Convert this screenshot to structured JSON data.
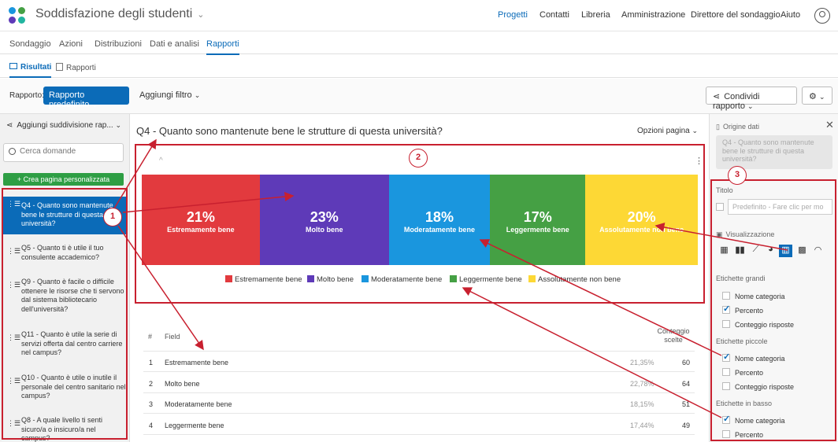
{
  "app": {
    "title": "Soddisfazione degli studenti"
  },
  "topnav": [
    "Progetti",
    "Contatti",
    "Libreria",
    "Amministrazione",
    "Direttore del sondaggio",
    "Aiuto"
  ],
  "tabs": [
    "Sondaggio",
    "Azioni",
    "Distribuzioni",
    "Dati e analisi",
    "Rapporti"
  ],
  "subtabs": [
    "Risultati",
    "Rapporti"
  ],
  "toolbar": {
    "report_label": "Rapporto:",
    "report_value": "Rapporto predefinito",
    "filter": "Aggiungi filtro",
    "share": "Condividi rapporto"
  },
  "sidebar": {
    "breakout": "Aggiungi suddivisione rap...",
    "search_placeholder": "Cerca domande",
    "create_page": "Crea pagina personalizzata",
    "questions": [
      "Q4 - Quanto sono mantenute bene le strutture di questa università?",
      "Q5 - Quanto ti è utile il tuo consulente accademico?",
      "Q9 - Quanto è facile o difficile ottenere le risorse che ti servono dal sistema bibliotecario dell'università?",
      "Q11 - Quanto è utile la serie di servizi offerta dal centro carriere nel campus?",
      "Q10 - Quanto è utile o inutile il personale del centro sanitario nel campus?",
      "Q8 - A quale livello ti senti sicuro/a o insicuro/a nel campus?"
    ]
  },
  "main": {
    "question_title": "Q4 - Quanto sono mantenute bene le strutture di questa università?",
    "page_options": "Opzioni pagina"
  },
  "chart_data": {
    "type": "bar",
    "stacked": true,
    "categories": [
      "Estremamente bene",
      "Molto bene",
      "Moderatamente bene",
      "Leggermente bene",
      "Assolutamente non bene"
    ],
    "values": [
      21,
      23,
      18,
      17,
      20
    ],
    "labels": [
      "21%",
      "23%",
      "18%",
      "17%",
      "20%"
    ],
    "colors": [
      "#e23a3e",
      "#5e3ab8",
      "#1a96de",
      "#45a044",
      "#fdd835"
    ],
    "legend": "bottom"
  },
  "table": {
    "headers": [
      "#",
      "Field",
      "Conteggio scelte"
    ],
    "rows": [
      {
        "n": "1",
        "field": "Estremamente bene",
        "pct": "21,35%",
        "count": "60"
      },
      {
        "n": "2",
        "field": "Molto bene",
        "pct": "22,78%",
        "count": "64"
      },
      {
        "n": "3",
        "field": "Moderatamente bene",
        "pct": "18,15%",
        "count": "51"
      },
      {
        "n": "4",
        "field": "Leggermente bene",
        "pct": "17,44%",
        "count": "49"
      }
    ]
  },
  "panel": {
    "source": "Origine dati",
    "source_value": "Q4 - Quanto sono mantenute bene le strutture di questa università?",
    "title_label": "Titolo",
    "title_placeholder": "Predefinito - Fare clic per mo",
    "viz_label": "Visualizzazione",
    "large_labels": "Etichette grandi",
    "small_labels": "Etichette piccole",
    "bottom_labels": "Etichette in basso",
    "opt_category": "Nome categoria",
    "opt_percent": "Percento",
    "opt_count": "Conteggio risposte"
  },
  "annotations": [
    "1",
    "2",
    "3"
  ]
}
